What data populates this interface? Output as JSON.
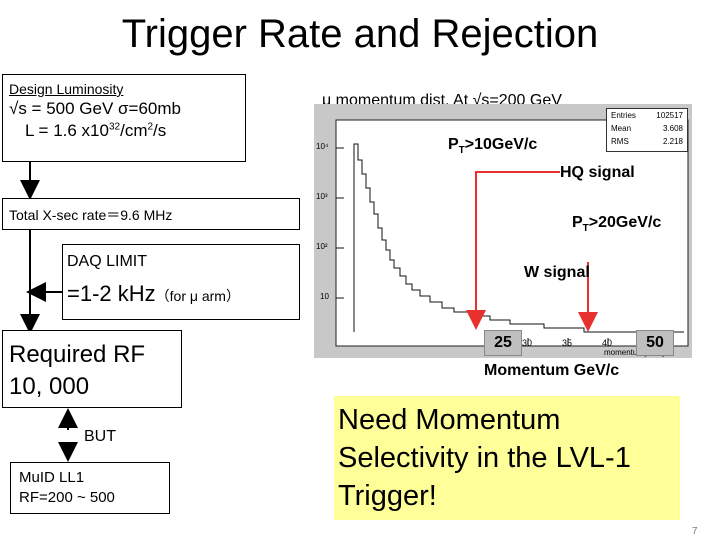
{
  "slide": {
    "title": "Trigger Rate and Rejection",
    "page_number": "7"
  },
  "left": {
    "design_box": {
      "heading": "Design Luminosity",
      "line1": "√s = 500 GeV  σ=60mb",
      "line2": "L = 1.6 x10",
      "line2_sup": "32",
      "line2_rest": "/cm",
      "line2_sup2": "2",
      "line2_end": "/s"
    },
    "xsec_box": {
      "text": "Total X-sec rate＝9.6 MHz"
    },
    "daq_box": {
      "heading": "DAQ LIMIT",
      "value": "=1-2 kHz",
      "note": "（for μ arm）"
    },
    "rf_box": {
      "line1": "Required RF",
      "line2": "10, 000"
    },
    "but_label": "BUT",
    "muid_box": {
      "line1": "MuID LL1",
      "line2": "RF=200 ~ 500"
    }
  },
  "plot": {
    "caption": "μ momentum dist. At √s=200 GeV",
    "stats": [
      {
        "label": "Entries",
        "value": "102517"
      },
      {
        "label": "Mean",
        "value": "3.608"
      },
      {
        "label": "RMS",
        "value": "2.218"
      }
    ],
    "y_ticks": [
      "10⁴",
      "10³",
      "10²",
      "10"
    ],
    "x_axis_label": "momentum[GeV]",
    "x_ticks": [
      "30",
      "35",
      "40",
      "45"
    ],
    "annotations": {
      "pt10": "P",
      "pt10_sub": "T",
      "pt10_rest": ">10GeV/c",
      "hq": "HQ signal",
      "pt20": "P",
      "pt20_sub": "T",
      "pt20_rest": ">20GeV/c",
      "w": "W signal"
    },
    "marker_left": "25",
    "marker_right": "50",
    "momentum_label": "Momentum GeV/c",
    "arrow_color": "#e8312f"
  },
  "callout": {
    "line1": "Need Momentum",
    "line2": "Selectivity in the LVL-1",
    "line3": "Trigger!"
  }
}
